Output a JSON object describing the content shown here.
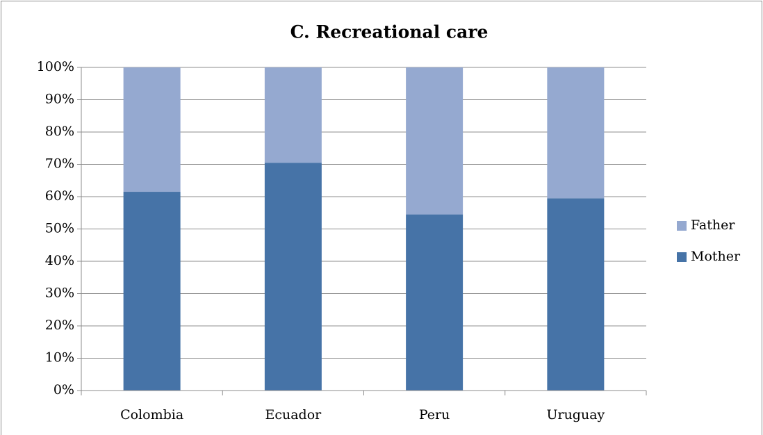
{
  "chart_data": {
    "type": "stacked_bar",
    "title": "C. Recreational care",
    "categories": [
      "Colombia",
      "Ecuador",
      "Peru",
      "Uruguay"
    ],
    "series": [
      {
        "name": "Mother",
        "color": "#4673a7",
        "values": [
          61.5,
          70.5,
          54.5,
          59.5
        ]
      },
      {
        "name": "Father",
        "color": "#95a9d0",
        "values": [
          38.5,
          29.5,
          45.5,
          40.5
        ]
      }
    ],
    "ylim": [
      0,
      100
    ],
    "yticks": [
      {
        "value": 0,
        "label": "0%"
      },
      {
        "value": 10,
        "label": "10%"
      },
      {
        "value": 20,
        "label": "20%"
      },
      {
        "value": 30,
        "label": "30%"
      },
      {
        "value": 40,
        "label": "40%"
      },
      {
        "value": 50,
        "label": "50%"
      },
      {
        "value": 60,
        "label": "60%"
      },
      {
        "value": 70,
        "label": "70%"
      },
      {
        "value": 80,
        "label": "80%"
      },
      {
        "value": 90,
        "label": "90%"
      },
      {
        "value": 100,
        "label": "100%"
      }
    ],
    "grid": true,
    "legend": "right"
  }
}
